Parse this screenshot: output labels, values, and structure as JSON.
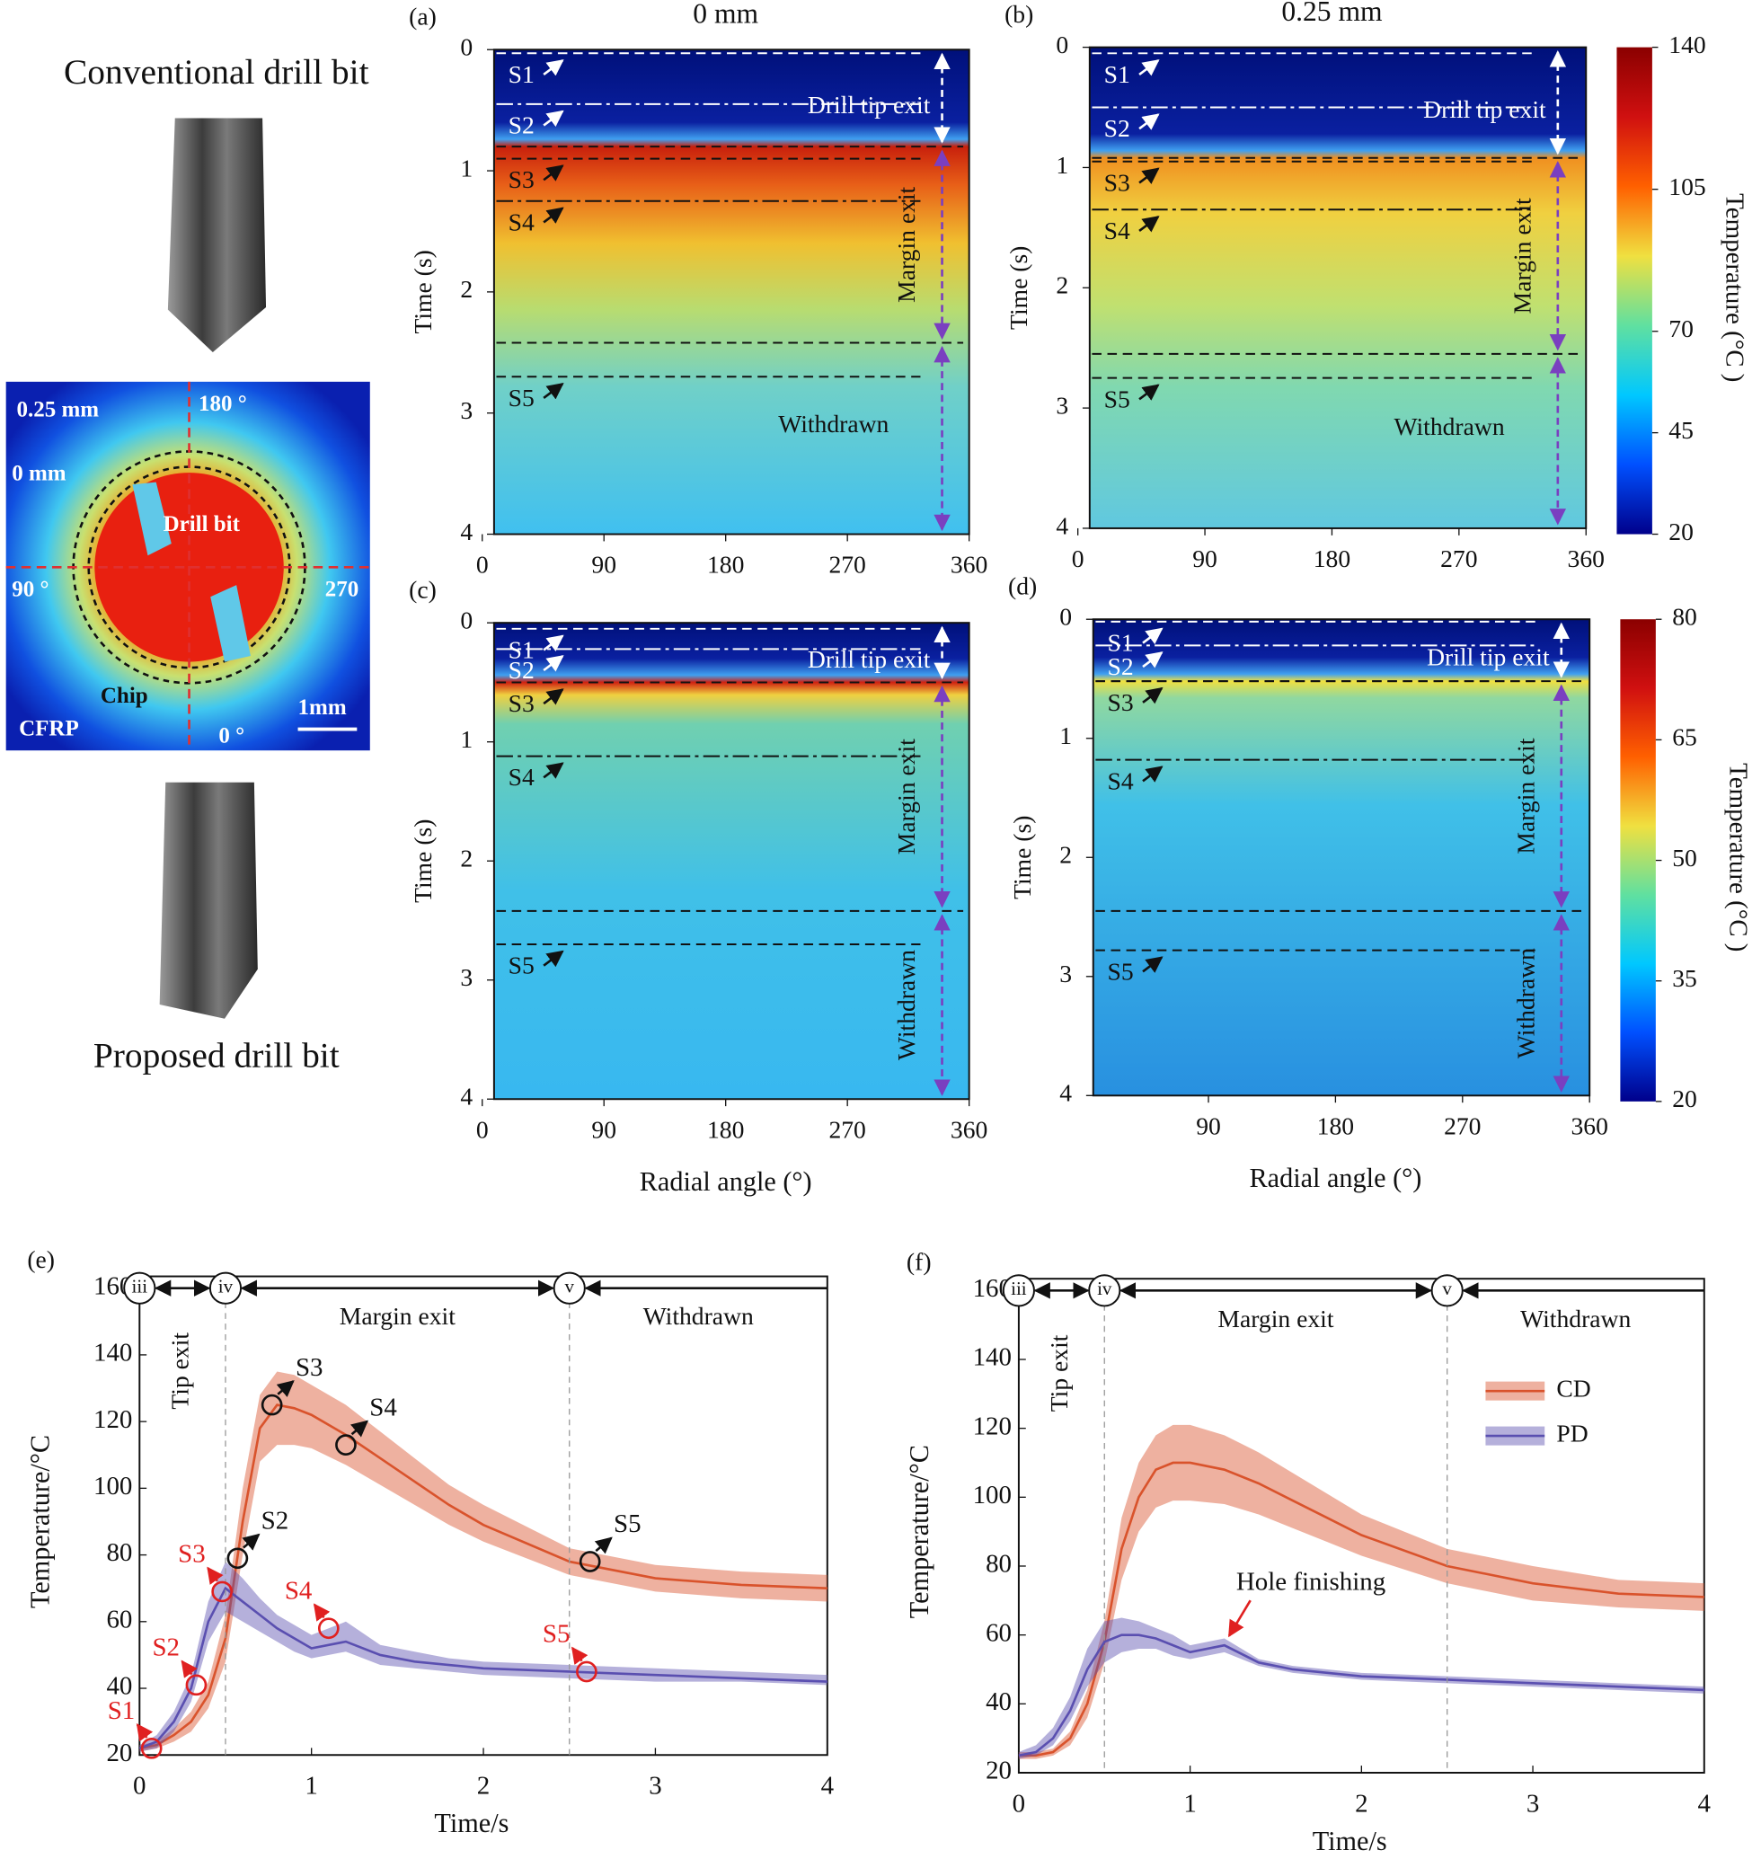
{
  "left": {
    "top_label": "Conventional drill bit",
    "bottom_label": "Proposed drill bit",
    "thermal_labels": {
      "depth_outer": "0.25 mm",
      "angle_top": "180 °",
      "depth_inner": "0 mm",
      "bit": "Drill  bit",
      "angle_left": "90 °",
      "angle_right": "270",
      "chip": "Chip",
      "scale": "1mm",
      "material": "CFRP",
      "angle_bottom": "0 °"
    }
  },
  "chart_data": [
    {
      "type": "heatmap",
      "panel": "(a)",
      "title": "0 mm",
      "ylabel": "Time (s)",
      "xlim": [
        0,
        360
      ],
      "xticks": [
        0,
        90,
        180,
        270,
        360
      ],
      "ylim": [
        0,
        4
      ],
      "y_inverted": true,
      "yticks": [
        0,
        1,
        2,
        3,
        4
      ],
      "markers": [
        {
          "label": "S1",
          "time": 0.03
        },
        {
          "label": "S2",
          "time": 0.45
        },
        {
          "label": "S3",
          "time": 0.9
        },
        {
          "label": "S4",
          "time": 1.25
        },
        {
          "label": "S5",
          "time": 2.7
        }
      ],
      "phase_bounds": [
        0.8,
        2.42
      ],
      "phases": [
        "Drill tip exit",
        "Margin exit",
        "Withdrawn"
      ]
    },
    {
      "type": "heatmap",
      "panel": "(b)",
      "title": "0.25 mm",
      "ylabel": "Time (s)",
      "xlim": [
        0,
        360
      ],
      "xticks": [
        0,
        90,
        180,
        270,
        360
      ],
      "ylim": [
        0,
        4
      ],
      "y_inverted": true,
      "yticks": [
        0,
        1,
        2,
        3,
        4
      ],
      "markers": [
        {
          "label": "S1",
          "time": 0.05
        },
        {
          "label": "S2",
          "time": 0.5
        },
        {
          "label": "S3",
          "time": 0.95
        },
        {
          "label": "S4",
          "time": 1.35
        },
        {
          "label": "S5",
          "time": 2.75
        }
      ],
      "phase_bounds": [
        0.92,
        2.55
      ],
      "phases": [
        "Drill tip exit",
        "Margin exit",
        "Withdrawn"
      ],
      "colorbar": {
        "label": "Temperature (°C )",
        "lim": [
          20,
          140
        ],
        "ticks": [
          20,
          45,
          70,
          105,
          140
        ]
      }
    },
    {
      "type": "heatmap",
      "panel": "(c)",
      "ylabel": "Time (s)",
      "xlabel": "Radial angle (°)",
      "xlim": [
        0,
        360
      ],
      "xticks": [
        0,
        90,
        180,
        270,
        360
      ],
      "ylim": [
        0,
        4
      ],
      "y_inverted": true,
      "yticks": [
        0,
        1,
        2,
        3,
        4
      ],
      "markers": [
        {
          "label": "S1",
          "time": 0.05
        },
        {
          "label": "S2",
          "time": 0.22
        },
        {
          "label": "S3",
          "time": 0.5
        },
        {
          "label": "S4",
          "time": 1.12
        },
        {
          "label": "S5",
          "time": 2.7
        }
      ],
      "phase_bounds": [
        0.5,
        2.42
      ],
      "phases": [
        "Drill tip exit",
        "Margin exit",
        "Withdrawn"
      ]
    },
    {
      "type": "heatmap",
      "panel": "(d)",
      "ylabel": "Time (s)",
      "xlabel": "Radial angle (°)",
      "xlim": [
        0,
        360
      ],
      "xticks": [
        90,
        180,
        270,
        360
      ],
      "ylim": [
        0,
        4
      ],
      "y_inverted": true,
      "yticks": [
        0,
        1,
        2,
        3,
        4
      ],
      "markers": [
        {
          "label": "S1",
          "time": 0.02
        },
        {
          "label": "S2",
          "time": 0.22
        },
        {
          "label": "S3",
          "time": 0.52
        },
        {
          "label": "S4",
          "time": 1.18
        },
        {
          "label": "S5",
          "time": 2.78
        }
      ],
      "phase_bounds": [
        0.52,
        2.45
      ],
      "phases": [
        "Drill tip exit",
        "Margin exit",
        "Withdrawn"
      ],
      "colorbar": {
        "label": "Temperature (°C )",
        "lim": [
          20,
          80
        ],
        "ticks": [
          20,
          35,
          50,
          65,
          80
        ]
      }
    },
    {
      "type": "line",
      "panel": "(e)",
      "xlabel": "Time/s",
      "ylabel": "Temperature/°C",
      "xlim": [
        0,
        4
      ],
      "xticks": [
        0,
        1,
        2,
        3,
        4
      ],
      "ylim": [
        20,
        160
      ],
      "yticks": [
        20,
        40,
        60,
        80,
        100,
        120,
        140,
        160
      ],
      "x": [
        0,
        0.1,
        0.2,
        0.3,
        0.4,
        0.5,
        0.6,
        0.7,
        0.8,
        0.9,
        1.0,
        1.2,
        1.4,
        1.6,
        1.8,
        2.0,
        2.5,
        3.0,
        3.5,
        4.0
      ],
      "series": [
        {
          "name": "CD",
          "color": "#d9532c",
          "values": [
            22,
            23,
            26,
            30,
            38,
            55,
            90,
            118,
            125,
            124,
            122,
            116,
            109,
            102,
            95,
            89,
            78,
            73,
            71,
            70
          ],
          "lower": [
            21,
            22,
            24,
            27,
            34,
            48,
            80,
            108,
            113,
            113,
            112,
            107,
            101,
            95,
            89,
            84,
            74,
            69,
            67,
            66
          ],
          "upper": [
            23,
            24,
            28,
            33,
            42,
            62,
            100,
            128,
            135,
            134,
            131,
            125,
            117,
            109,
            101,
            95,
            82,
            77,
            75,
            74
          ]
        },
        {
          "name": "PD",
          "color": "#5a4fb0",
          "values": [
            22,
            24,
            30,
            40,
            60,
            70,
            66,
            62,
            58,
            55,
            52,
            54,
            50,
            48,
            47,
            46,
            45,
            44,
            43,
            42
          ],
          "lower": [
            21,
            22,
            27,
            36,
            54,
            63,
            60,
            57,
            54,
            51,
            49,
            51,
            47,
            46,
            45,
            44,
            43,
            42,
            42,
            41
          ],
          "upper": [
            23,
            26,
            33,
            44,
            66,
            78,
            73,
            67,
            62,
            59,
            56,
            60,
            53,
            51,
            49,
            48,
            47,
            46,
            45,
            44
          ]
        }
      ],
      "stages": [
        {
          "label": "iii",
          "x": 0
        },
        {
          "label": "iv",
          "x": 0.5
        },
        {
          "label": "v",
          "x": 2.5
        }
      ],
      "phases": [
        "Tip exit",
        "Margin exit",
        "Withdrawn"
      ],
      "points": [
        {
          "label": "S2",
          "x": 0.57,
          "y": 79,
          "color": "#111111"
        },
        {
          "label": "S3",
          "x": 0.77,
          "y": 125,
          "color": "#111111"
        },
        {
          "label": "S4",
          "x": 1.2,
          "y": 113,
          "color": "#111111"
        },
        {
          "label": "S5",
          "x": 2.62,
          "y": 78,
          "color": "#111111"
        },
        {
          "label": "S1",
          "x": 0.07,
          "y": 22,
          "color": "#e02020"
        },
        {
          "label": "S2",
          "x": 0.33,
          "y": 41,
          "color": "#e02020"
        },
        {
          "label": "S3",
          "x": 0.48,
          "y": 69,
          "color": "#e02020"
        },
        {
          "label": "S4",
          "x": 1.1,
          "y": 58,
          "color": "#e02020"
        },
        {
          "label": "S5",
          "x": 2.6,
          "y": 45,
          "color": "#e02020"
        }
      ]
    },
    {
      "type": "line",
      "panel": "(f)",
      "xlabel": "Time/s",
      "ylabel": "Temperature/°C",
      "xlim": [
        0,
        4
      ],
      "xticks": [
        0,
        1,
        2,
        3,
        4
      ],
      "ylim": [
        20,
        160
      ],
      "yticks": [
        20,
        40,
        60,
        80,
        100,
        120,
        140,
        160
      ],
      "x": [
        0,
        0.1,
        0.2,
        0.3,
        0.4,
        0.5,
        0.6,
        0.7,
        0.8,
        0.9,
        1.0,
        1.2,
        1.4,
        1.6,
        1.8,
        2.0,
        2.5,
        3.0,
        3.5,
        4.0
      ],
      "series": [
        {
          "name": "CD",
          "color": "#d9532c",
          "values": [
            25,
            25,
            26,
            30,
            40,
            58,
            85,
            100,
            108,
            110,
            110,
            108,
            104,
            99,
            94,
            89,
            80,
            75,
            72,
            71
          ],
          "lower": [
            24,
            24,
            25,
            28,
            36,
            52,
            76,
            90,
            97,
            99,
            99,
            98,
            95,
            91,
            87,
            83,
            75,
            70,
            68,
            67
          ],
          "upper": [
            26,
            26,
            27,
            32,
            44,
            64,
            94,
            110,
            118,
            121,
            121,
            118,
            113,
            107,
            101,
            95,
            85,
            80,
            76,
            75
          ]
        },
        {
          "name": "PD",
          "color": "#5a4fb0",
          "values": [
            25,
            26,
            30,
            38,
            50,
            58,
            60,
            60,
            59,
            57,
            55,
            57,
            52,
            50,
            49,
            48,
            47,
            46,
            45,
            44
          ],
          "lower": [
            24,
            25,
            28,
            35,
            45,
            52,
            55,
            56,
            56,
            54,
            53,
            55,
            51,
            49,
            48,
            47,
            46,
            45,
            44,
            43
          ],
          "upper": [
            26,
            28,
            33,
            42,
            56,
            64,
            65,
            64,
            62,
            60,
            57,
            59,
            53,
            51,
            50,
            49,
            48,
            47,
            46,
            45
          ]
        }
      ],
      "stages": [
        {
          "label": "iii",
          "x": 0
        },
        {
          "label": "iv",
          "x": 0.5
        },
        {
          "label": "v",
          "x": 2.5
        }
      ],
      "phases": [
        "Tip exit",
        "Margin exit",
        "Withdrawn"
      ],
      "legend": "upper right",
      "annotation": {
        "text": "Hole finishing",
        "x": 1.2,
        "y": 57
      }
    }
  ]
}
